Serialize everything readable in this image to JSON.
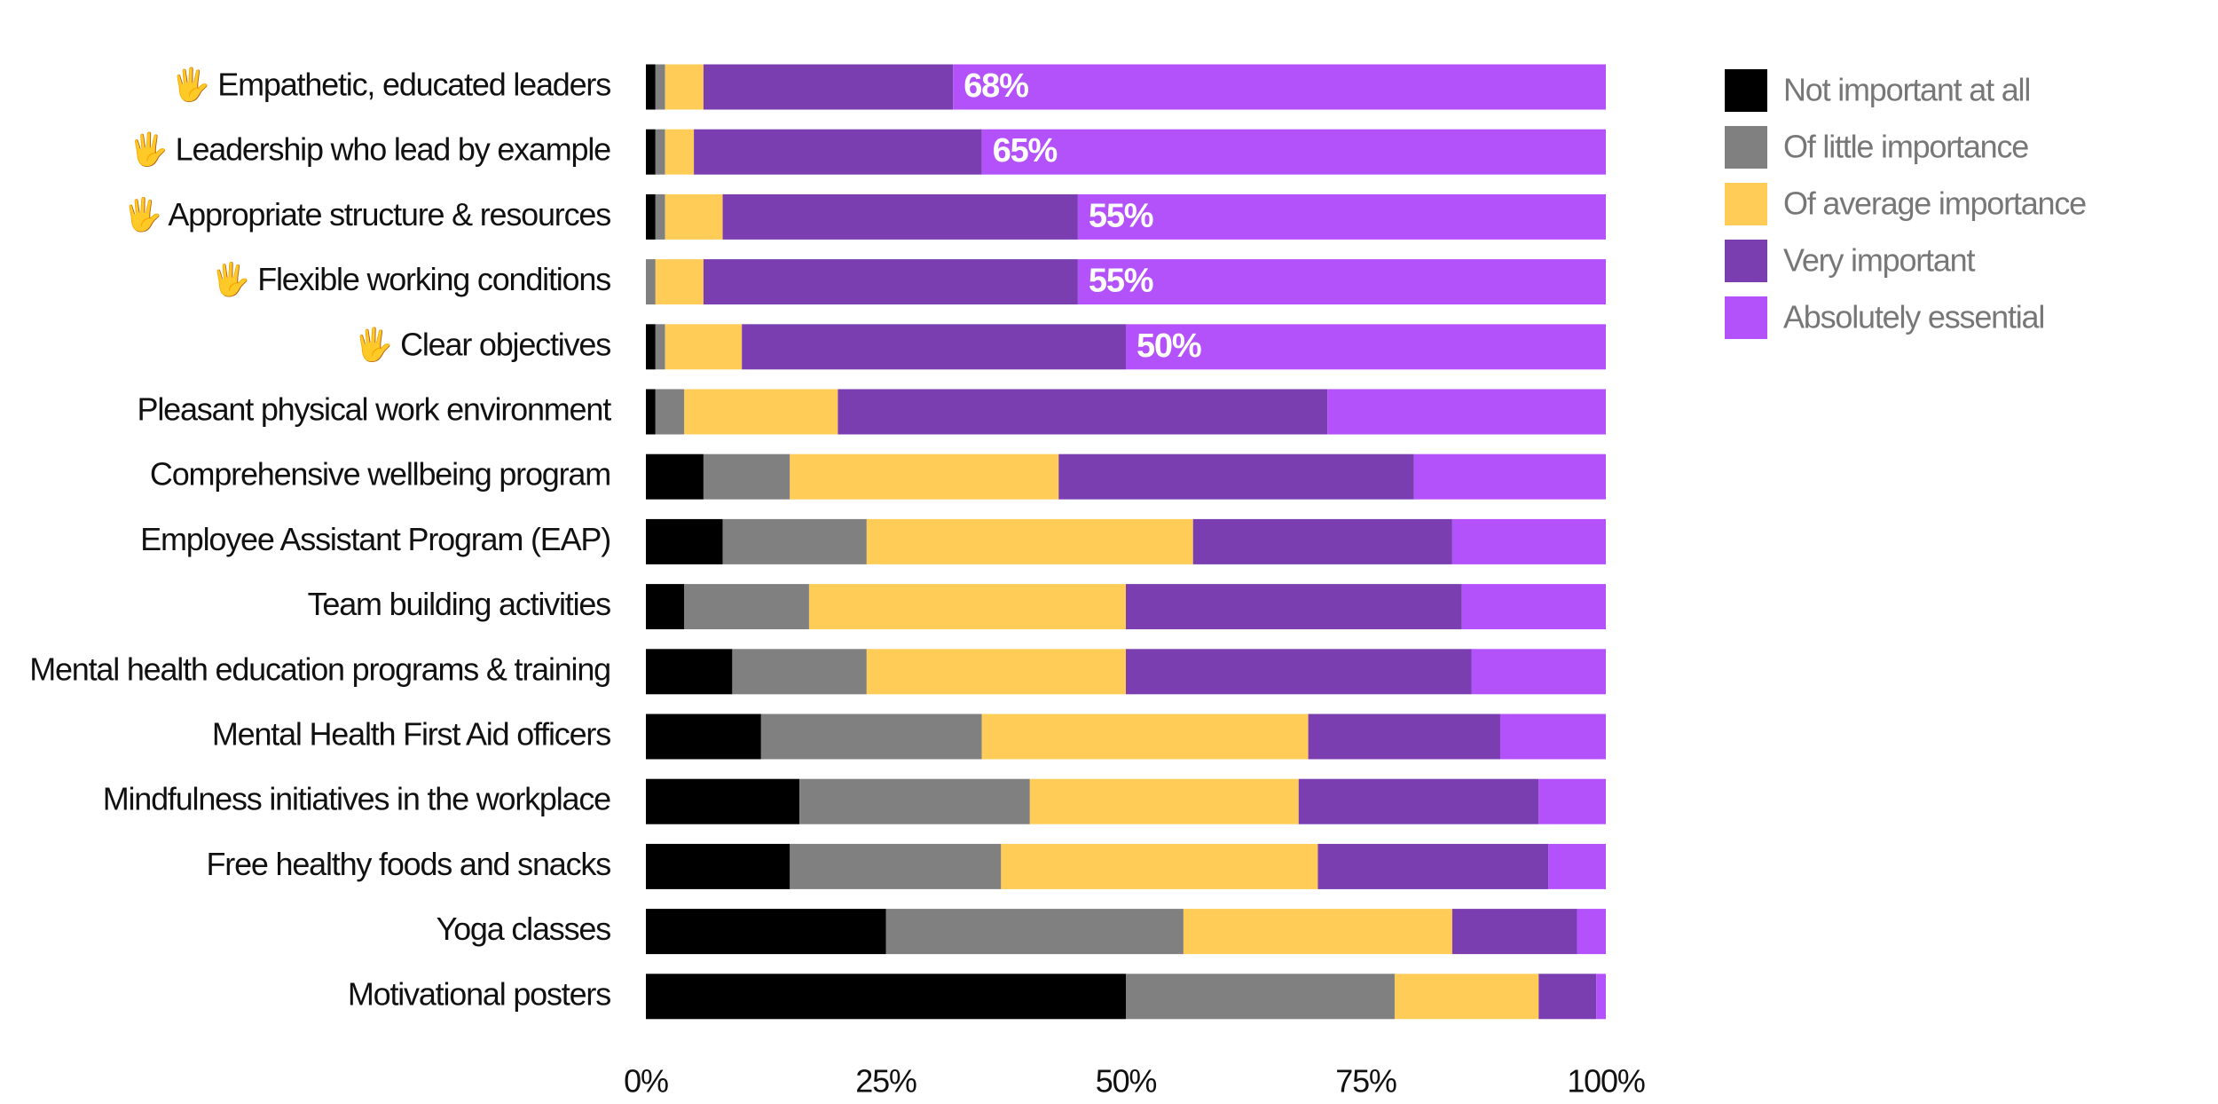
{
  "chart_data": {
    "type": "stacked_bar_horizontal",
    "categories": [
      "🖐 Empathetic, educated leaders",
      "🖐 Leadership who lead by example",
      "🖐 Appropriate structure & resources",
      "🖐 Flexible working conditions",
      "🖐 Clear objectives",
      "Pleasant physical work environment",
      "Comprehensive wellbeing program",
      "Employee Assistant Program (EAP)",
      "Team building activities",
      "Mental health education programs & training",
      "Mental Health First Aid officers",
      "Mindfulness initiatives in the workplace",
      "Free healthy foods and snacks",
      "Yoga classes",
      "Motivational posters"
    ],
    "series": [
      {
        "name": "Not important at all",
        "color": "#000000",
        "values": [
          1,
          1,
          1,
          0,
          1,
          1,
          6,
          8,
          4,
          9,
          12,
          16,
          15,
          25,
          50
        ]
      },
      {
        "name": "Of little importance",
        "color": "#808080",
        "values": [
          1,
          1,
          1,
          1,
          1,
          3,
          9,
          15,
          13,
          14,
          23,
          24,
          22,
          31,
          28
        ]
      },
      {
        "name": "Of average importance",
        "color": "#ffcd57",
        "values": [
          4,
          3,
          6,
          5,
          8,
          16,
          28,
          34,
          33,
          27,
          34,
          28,
          33,
          28,
          15
        ]
      },
      {
        "name": "Very important",
        "color": "#7a3eb1",
        "values": [
          26,
          30,
          37,
          39,
          40,
          51,
          37,
          27,
          35,
          36,
          20,
          25,
          24,
          13,
          6
        ]
      },
      {
        "name": "Absolutely essential",
        "color": "#b352fb",
        "values": [
          68,
          65,
          55,
          55,
          50,
          29,
          20,
          16,
          15,
          14,
          11,
          7,
          6,
          3,
          1
        ],
        "value_labels": [
          "68%",
          "65%",
          "55%",
          "55%",
          "50%",
          null,
          null,
          null,
          null,
          null,
          null,
          null,
          null,
          null,
          null
        ]
      }
    ],
    "xlim": [
      0,
      100
    ],
    "xticks": [
      {
        "value": 0,
        "label": "0%"
      },
      {
        "value": 25,
        "label": "25%"
      },
      {
        "value": 50,
        "label": "50%"
      },
      {
        "value": 75,
        "label": "75%"
      },
      {
        "value": 100,
        "label": "100%"
      }
    ],
    "grid": false
  }
}
